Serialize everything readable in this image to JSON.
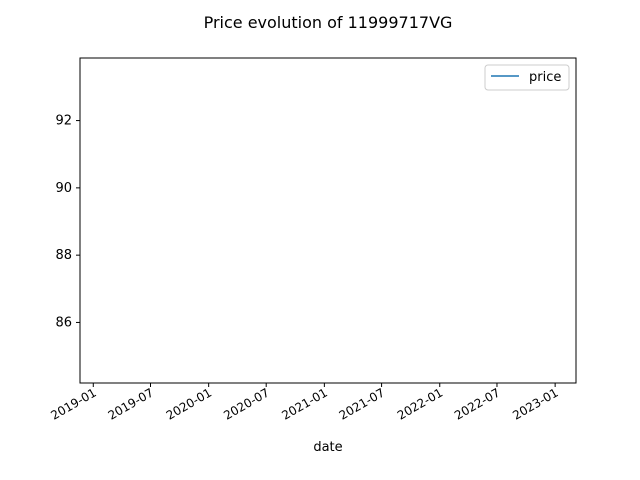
{
  "chart_data": {
    "type": "line",
    "title": "Price evolution of 11999717VG",
    "xlabel": "date",
    "ylabel": "",
    "x_axis_type": "date",
    "xlim": [
      "2018-11-20",
      "2023-03-08"
    ],
    "ylim": [
      84.2,
      93.86
    ],
    "x_ticks": [
      "2019-01",
      "2019-07",
      "2020-01",
      "2020-07",
      "2021-01",
      "2021-07",
      "2022-01",
      "2022-07",
      "2023-01"
    ],
    "y_ticks": [
      86,
      88,
      90,
      92
    ],
    "grid": false,
    "legend": {
      "placement": "top-right"
    },
    "series": [
      {
        "name": "price",
        "color": "#1f77b4",
        "x": [],
        "y": []
      }
    ]
  }
}
